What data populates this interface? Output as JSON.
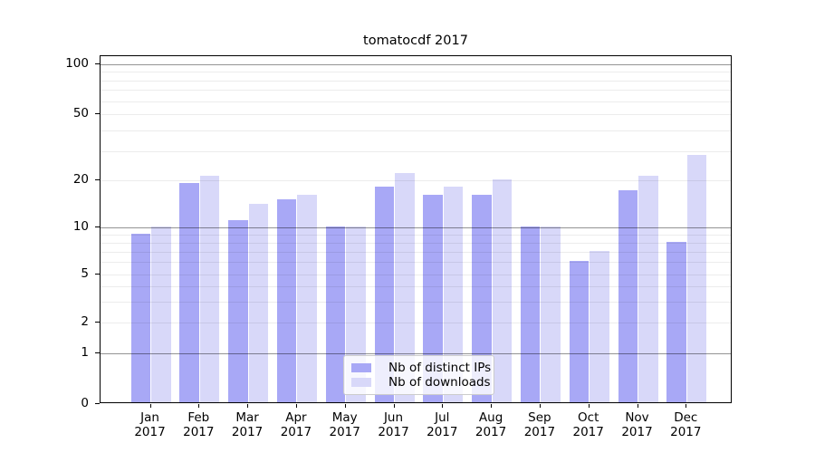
{
  "title": "tomatocdf 2017",
  "chart_data": {
    "type": "bar",
    "title": "tomatocdf 2017",
    "categories": [
      "Jan",
      "Feb",
      "Mar",
      "Apr",
      "May",
      "Jun",
      "Jul",
      "Aug",
      "Sep",
      "Oct",
      "Nov",
      "Dec"
    ],
    "year_label": "2017",
    "series": [
      {
        "name": "Nb of distinct IPs",
        "color": "#a8a8f6",
        "values": [
          9,
          19,
          11,
          15,
          10,
          18,
          16,
          16,
          10,
          6,
          17,
          8
        ]
      },
      {
        "name": "Nb of downloads",
        "color": "#d8d8f9",
        "values": [
          10,
          21,
          14,
          16,
          10,
          22,
          18,
          20,
          10,
          7,
          21,
          28
        ]
      }
    ],
    "xlabel": "",
    "ylabel": "",
    "yscale": "symlog",
    "ylim": [
      0,
      110
    ],
    "grid": "both",
    "legend_position": "lower center",
    "y_ticks": [
      {
        "value": 100,
        "label": "100"
      },
      {
        "value": 50,
        "label": "50"
      },
      {
        "value": 20,
        "label": "20"
      },
      {
        "value": 10,
        "label": "10"
      },
      {
        "value": 5,
        "label": "5"
      },
      {
        "value": 2,
        "label": "2"
      },
      {
        "value": 1,
        "label": "1"
      },
      {
        "value": 0,
        "label": "0"
      }
    ],
    "y_major_gridlines": [
      1,
      10,
      100
    ],
    "y_minor_gridlines": [
      2,
      3,
      4,
      5,
      6,
      7,
      8,
      9,
      20,
      30,
      40,
      50,
      60,
      70,
      80,
      90
    ]
  }
}
